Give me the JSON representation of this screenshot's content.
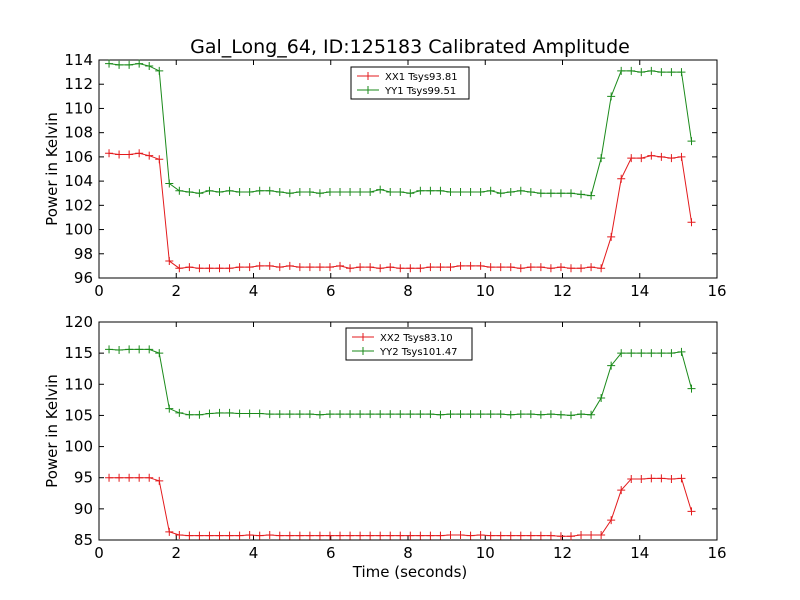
{
  "chart_data": {
    "title": "Gal_Long_64, ID:125183 Calibrated Amplitude",
    "xlabel": "Time (seconds)",
    "ylabel": "Power in Kelvin",
    "x": [
      0.26,
      0.52,
      0.78,
      1.04,
      1.3,
      1.56,
      1.82,
      2.08,
      2.34,
      2.6,
      2.86,
      3.12,
      3.38,
      3.64,
      3.9,
      4.16,
      4.42,
      4.68,
      4.94,
      5.2,
      5.46,
      5.72,
      5.98,
      6.24,
      6.5,
      6.76,
      7.02,
      7.28,
      7.54,
      7.8,
      8.06,
      8.32,
      8.58,
      8.84,
      9.1,
      9.36,
      9.62,
      9.88,
      10.14,
      10.4,
      10.66,
      10.92,
      11.18,
      11.44,
      11.7,
      11.96,
      12.22,
      12.48,
      12.74,
      13.0,
      13.26,
      13.52,
      13.78,
      14.04,
      14.3,
      14.56,
      14.82,
      15.08,
      15.34
    ],
    "panels": [
      {
        "xlim": [
          0,
          16
        ],
        "ylim": [
          96,
          114
        ],
        "xticks": [
          "0",
          "2",
          "4",
          "6",
          "8",
          "10",
          "12",
          "14",
          "16"
        ],
        "yticks": [
          "96",
          "98",
          "100",
          "102",
          "104",
          "106",
          "108",
          "110",
          "112",
          "114"
        ],
        "xlabel": "",
        "ylabel": "Power in Kelvin",
        "legend_position": "upper-center",
        "series": [
          {
            "name": "XX1 Tsys93.81",
            "color": "#e31a1c",
            "values": [
              106.3,
              106.2,
              106.2,
              106.3,
              106.1,
              105.8,
              97.4,
              96.8,
              96.9,
              96.8,
              96.8,
              96.8,
              96.8,
              96.9,
              96.9,
              97.0,
              97.0,
              96.9,
              97.0,
              96.9,
              96.9,
              96.9,
              96.9,
              97.0,
              96.8,
              96.9,
              96.9,
              96.8,
              96.9,
              96.8,
              96.8,
              96.8,
              96.9,
              96.9,
              96.9,
              97.0,
              97.0,
              97.0,
              96.9,
              96.9,
              96.9,
              96.8,
              96.9,
              96.9,
              96.8,
              96.9,
              96.8,
              96.8,
              96.9,
              96.8,
              99.4,
              104.2,
              105.9,
              105.9,
              106.1,
              106.0,
              105.9,
              106.0,
              100.6
            ]
          },
          {
            "name": "YY1 Tsys99.51",
            "color": "#1a8a1a",
            "values": [
              113.7,
              113.6,
              113.6,
              113.7,
              113.5,
              113.1,
              103.8,
              103.2,
              103.1,
              103.0,
              103.2,
              103.1,
              103.2,
              103.1,
              103.1,
              103.2,
              103.2,
              103.1,
              103.0,
              103.1,
              103.1,
              103.0,
              103.1,
              103.1,
              103.1,
              103.1,
              103.1,
              103.3,
              103.1,
              103.1,
              103.0,
              103.2,
              103.2,
              103.2,
              103.1,
              103.1,
              103.1,
              103.1,
              103.2,
              103.0,
              103.1,
              103.2,
              103.1,
              103.0,
              103.0,
              103.0,
              103.0,
              102.9,
              102.8,
              105.9,
              111.0,
              113.1,
              113.1,
              113.0,
              113.1,
              113.0,
              113.0,
              113.0,
              107.3
            ]
          }
        ]
      },
      {
        "xlim": [
          0,
          16
        ],
        "ylim": [
          85,
          120
        ],
        "xticks": [
          "0",
          "2",
          "4",
          "6",
          "8",
          "10",
          "12",
          "14",
          "16"
        ],
        "yticks": [
          "85",
          "90",
          "95",
          "100",
          "105",
          "110",
          "115",
          "120"
        ],
        "xlabel": "Time (seconds)",
        "ylabel": "Power in Kelvin",
        "legend_position": "upper-center",
        "series": [
          {
            "name": "XX2 Tsys83.10",
            "color": "#e31a1c",
            "values": [
              95.0,
              95.0,
              95.0,
              95.0,
              95.0,
              94.5,
              86.3,
              85.8,
              85.7,
              85.7,
              85.7,
              85.7,
              85.7,
              85.7,
              85.8,
              85.7,
              85.8,
              85.7,
              85.7,
              85.7,
              85.7,
              85.7,
              85.7,
              85.7,
              85.7,
              85.7,
              85.7,
              85.7,
              85.7,
              85.7,
              85.7,
              85.7,
              85.7,
              85.7,
              85.8,
              85.8,
              85.7,
              85.8,
              85.7,
              85.7,
              85.7,
              85.7,
              85.7,
              85.7,
              85.7,
              85.6,
              85.6,
              85.8,
              85.8,
              85.8,
              88.2,
              93.0,
              94.8,
              94.8,
              94.9,
              94.9,
              94.8,
              94.9,
              89.6
            ]
          },
          {
            "name": "YY2 Tsys101.47",
            "color": "#1a8a1a",
            "values": [
              115.6,
              115.5,
              115.6,
              115.6,
              115.6,
              115.0,
              106.1,
              105.4,
              105.1,
              105.1,
              105.3,
              105.4,
              105.4,
              105.3,
              105.3,
              105.3,
              105.2,
              105.2,
              105.2,
              105.2,
              105.2,
              105.1,
              105.2,
              105.2,
              105.2,
              105.2,
              105.2,
              105.2,
              105.2,
              105.2,
              105.2,
              105.2,
              105.2,
              105.1,
              105.2,
              105.2,
              105.2,
              105.2,
              105.2,
              105.2,
              105.1,
              105.2,
              105.2,
              105.1,
              105.2,
              105.1,
              105.0,
              105.2,
              105.1,
              107.8,
              113.0,
              115.0,
              115.0,
              115.0,
              115.0,
              115.0,
              115.0,
              115.2,
              109.3
            ]
          }
        ]
      }
    ]
  }
}
